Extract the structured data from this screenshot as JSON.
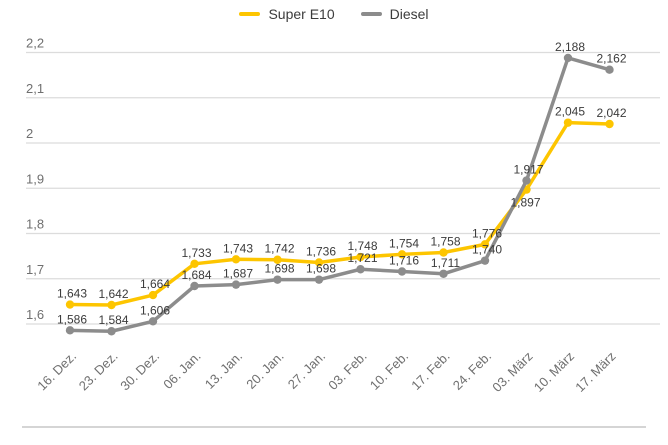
{
  "legend": {
    "items": [
      {
        "label": "Super E10",
        "color": "#fdc500"
      },
      {
        "label": "Diesel",
        "color": "#8c8c8c"
      }
    ]
  },
  "chart_data": {
    "type": "line",
    "title": "",
    "xlabel": "",
    "ylabel": "",
    "categories": [
      "16. Dez.",
      "23. Dez.",
      "30. Dez.",
      "06. Jan.",
      "13. Jan.",
      "20. Jan.",
      "27. Jan.",
      "03. Feb.",
      "10. Feb.",
      "17. Feb.",
      "24. Feb.",
      "03. März",
      "10. März",
      "17. März"
    ],
    "series": [
      {
        "name": "Super E10",
        "color": "#fdc500",
        "values": [
          1.643,
          1.642,
          1.664,
          1.733,
          1.743,
          1.742,
          1.736,
          1.748,
          1.754,
          1.758,
          1.776,
          1.897,
          2.045,
          2.042
        ],
        "point_labels": [
          "1,643",
          "1,642",
          "1,664",
          "1,733",
          "1,743",
          "1,742",
          "1,736",
          "1,748",
          "1,754",
          "1,758",
          "1,776",
          "1,897",
          "2,045",
          "2,042"
        ]
      },
      {
        "name": "Diesel",
        "color": "#8c8c8c",
        "values": [
          1.586,
          1.584,
          1.606,
          1.684,
          1.687,
          1.698,
          1.698,
          1.721,
          1.716,
          1.711,
          1.74,
          1.917,
          2.188,
          2.162
        ],
        "point_labels": [
          "1,586",
          "1,584",
          "1,606",
          "1,684",
          "1,687",
          "1,698",
          "1,698",
          "1,721",
          "1,716",
          "1,711",
          "1,740",
          "1,917",
          "2,188",
          "2,162"
        ]
      }
    ],
    "ylim": [
      1.6,
      2.2
    ],
    "y_ticks": [
      {
        "value": 2.2,
        "label": "2,2"
      },
      {
        "value": 2.1,
        "label": "2,1"
      },
      {
        "value": 2.0,
        "label": "2"
      },
      {
        "value": 1.9,
        "label": "1,9"
      },
      {
        "value": 1.8,
        "label": "1,8"
      },
      {
        "value": 1.7,
        "label": "1,7"
      },
      {
        "value": 1.6,
        "label": "1,6"
      }
    ],
    "grid": "horizontal",
    "legend_position": "top"
  },
  "colors": {
    "background": "#ffffff",
    "gridline": "#dcdcdc",
    "tick_text": "#6f6f6f",
    "data_label_text": "#3b3b3b",
    "divider": "#c7c7c7"
  }
}
